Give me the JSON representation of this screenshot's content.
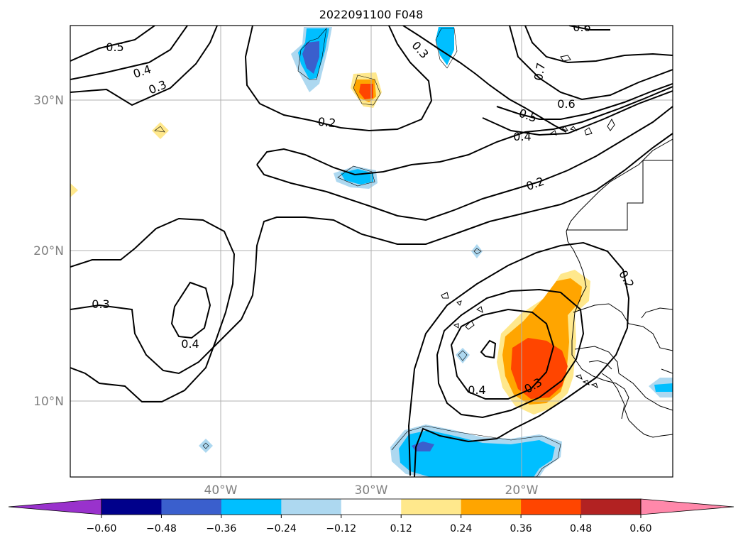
{
  "title": "2022091100 F048",
  "map": {
    "lat_labels": [
      "30°N",
      "20°N",
      "10°N"
    ],
    "lon_labels": [
      "40°W",
      "30°W",
      "20°W"
    ],
    "contour_labels": [
      "0.5",
      "0.4",
      "0.3",
      "0.2",
      "0.3",
      "0.6",
      "0.7",
      "0.6",
      "0.5",
      "0.4",
      "0.2",
      "0.3",
      "0.4",
      "0.2",
      "0.4",
      "0.3"
    ]
  },
  "colorbar": {
    "tick_labels": [
      "−0.60",
      "−0.48",
      "−0.36",
      "−0.24",
      "−0.12",
      "0.12",
      "0.24",
      "0.36",
      "0.48",
      "0.60"
    ],
    "colors": [
      "#9932cc",
      "#00008b",
      "#3a5fcd",
      "#00bfff",
      "#add8f0",
      "#ffffff",
      "#ffe88c",
      "#ffa500",
      "#ff4500",
      "#b22222",
      "#ff88aa"
    ]
  }
}
